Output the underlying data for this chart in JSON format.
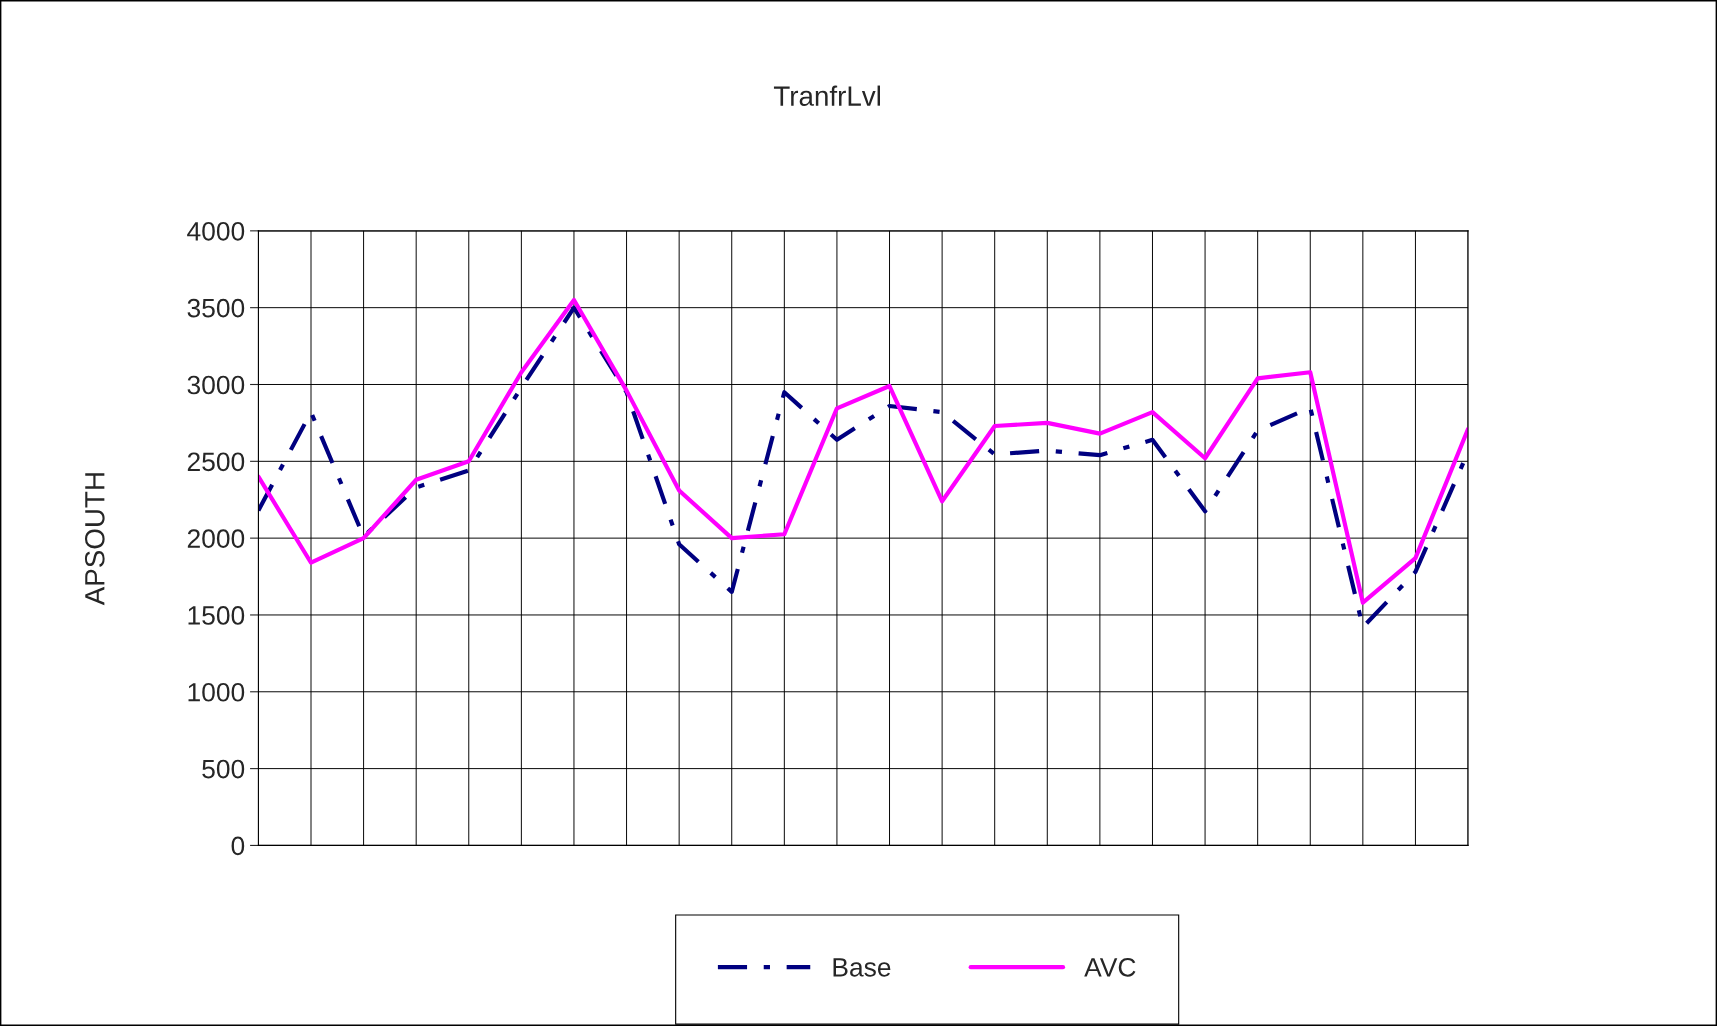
{
  "chart_data": {
    "type": "line",
    "title": "TranfrLvl",
    "ylabel": "APSOUTH",
    "categories": [
      null,
      null,
      null,
      null,
      null,
      null,
      null,
      null,
      null,
      null,
      null,
      null,
      null,
      null,
      null,
      null,
      null,
      null,
      null,
      null,
      null,
      null,
      null,
      null
    ],
    "series": [
      {
        "name": "Base",
        "color": "#000080",
        "line_style": "dashed",
        "values": [
          2180,
          2820,
          2010,
          2330,
          2440,
          2980,
          3500,
          2950,
          1960,
          1650,
          2950,
          2640,
          2860,
          2820,
          2545,
          2570,
          2540,
          2640,
          2175,
          2700,
          2850,
          1420,
          1780,
          2560
        ]
      },
      {
        "name": "AVC",
        "color": "#ff00ff",
        "line_style": "solid",
        "values": [
          2400,
          1840,
          2000,
          2380,
          2500,
          3080,
          3550,
          2960,
          2310,
          2000,
          2025,
          2845,
          2990,
          2240,
          2730,
          2750,
          2680,
          2820,
          2520,
          3040,
          3080,
          1580,
          1870,
          2710
        ]
      }
    ],
    "ylim": [
      0,
      4000
    ],
    "yticks": [
      0,
      500,
      1000,
      1500,
      2000,
      2500,
      3000,
      3500,
      4000
    ],
    "grid": true,
    "legend": "bottom",
    "tick_labels": "y",
    "marker": "none"
  }
}
